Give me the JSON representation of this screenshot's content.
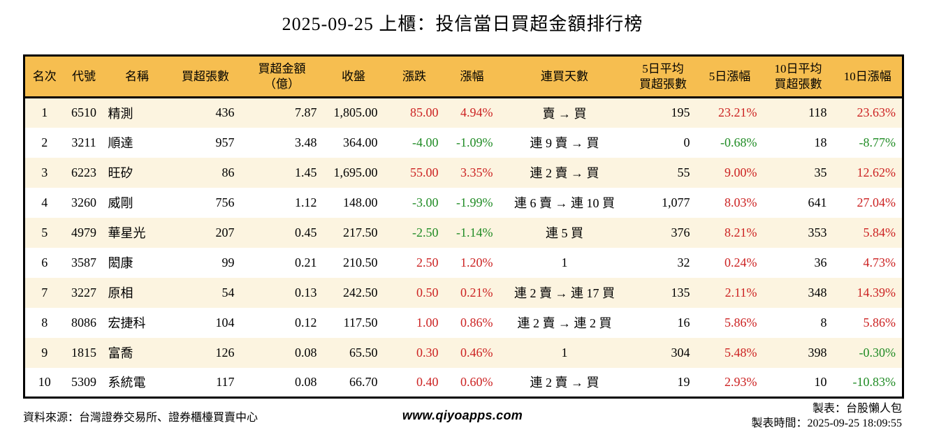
{
  "title": "2025-09-25 上櫃：投信當日買超金額排行榜",
  "colors": {
    "up": "#CC2222",
    "down": "#1F8B24",
    "header_bg": "#F6BE50",
    "stripe_bg": "#FCF4E0",
    "border": "#000000"
  },
  "chart_data": {
    "type": "table",
    "title": "2025-09-25 上櫃：投信當日買超金額排行榜",
    "columns": [
      {
        "key": "rank",
        "label": "名次"
      },
      {
        "key": "code",
        "label": "代號"
      },
      {
        "key": "name",
        "label": "名稱"
      },
      {
        "key": "shares",
        "label": "買超張數"
      },
      {
        "key": "amount",
        "label": "買超金額\n（億）"
      },
      {
        "key": "close",
        "label": "收盤"
      },
      {
        "key": "change",
        "label": "漲跌"
      },
      {
        "key": "change_pct",
        "label": "漲幅"
      },
      {
        "key": "streak",
        "label": "連買天數"
      },
      {
        "key": "avg5",
        "label": "5日平均\n買超張數"
      },
      {
        "key": "pct5",
        "label": "5日漲幅"
      },
      {
        "key": "avg10",
        "label": "10日平均\n買超張數"
      },
      {
        "key": "pct10",
        "label": "10日漲幅"
      }
    ],
    "colored_columns": [
      "change",
      "change_pct",
      "pct5",
      "pct10"
    ],
    "rows": [
      {
        "rank": "1",
        "code": "6510",
        "name": "精測",
        "shares": "436",
        "amount": "7.87",
        "close": "1,805.00",
        "change": "85.00",
        "change_pct": "4.94%",
        "streak": "賣 → 買",
        "avg5": "195",
        "pct5": "23.21%",
        "avg10": "118",
        "pct10": "23.63%"
      },
      {
        "rank": "2",
        "code": "3211",
        "name": "順達",
        "shares": "957",
        "amount": "3.48",
        "close": "364.00",
        "change": "-4.00",
        "change_pct": "-1.09%",
        "streak": "連 9 賣 → 買",
        "avg5": "0",
        "pct5": "-0.68%",
        "avg10": "18",
        "pct10": "-8.77%"
      },
      {
        "rank": "3",
        "code": "6223",
        "name": "旺矽",
        "shares": "86",
        "amount": "1.45",
        "close": "1,695.00",
        "change": "55.00",
        "change_pct": "3.35%",
        "streak": "連 2 賣 → 買",
        "avg5": "55",
        "pct5": "9.00%",
        "avg10": "35",
        "pct10": "12.62%"
      },
      {
        "rank": "4",
        "code": "3260",
        "name": "威剛",
        "shares": "756",
        "amount": "1.12",
        "close": "148.00",
        "change": "-3.00",
        "change_pct": "-1.99%",
        "streak": "連 6 賣 → 連 10 買",
        "avg5": "1,077",
        "pct5": "8.03%",
        "avg10": "641",
        "pct10": "27.04%"
      },
      {
        "rank": "5",
        "code": "4979",
        "name": "華星光",
        "shares": "207",
        "amount": "0.45",
        "close": "217.50",
        "change": "-2.50",
        "change_pct": "-1.14%",
        "streak": "連 5 買",
        "avg5": "376",
        "pct5": "8.21%",
        "avg10": "353",
        "pct10": "5.84%"
      },
      {
        "rank": "6",
        "code": "3587",
        "name": "閎康",
        "shares": "99",
        "amount": "0.21",
        "close": "210.50",
        "change": "2.50",
        "change_pct": "1.20%",
        "streak": "1",
        "avg5": "32",
        "pct5": "0.24%",
        "avg10": "36",
        "pct10": "4.73%"
      },
      {
        "rank": "7",
        "code": "3227",
        "name": "原相",
        "shares": "54",
        "amount": "0.13",
        "close": "242.50",
        "change": "0.50",
        "change_pct": "0.21%",
        "streak": "連 2 賣 → 連 17 買",
        "avg5": "135",
        "pct5": "2.11%",
        "avg10": "348",
        "pct10": "14.39%"
      },
      {
        "rank": "8",
        "code": "8086",
        "name": "宏捷科",
        "shares": "104",
        "amount": "0.12",
        "close": "117.50",
        "change": "1.00",
        "change_pct": "0.86%",
        "streak": "連 2 賣 → 連 2 買",
        "avg5": "16",
        "pct5": "5.86%",
        "avg10": "8",
        "pct10": "5.86%"
      },
      {
        "rank": "9",
        "code": "1815",
        "name": "富喬",
        "shares": "126",
        "amount": "0.08",
        "close": "65.50",
        "change": "0.30",
        "change_pct": "0.46%",
        "streak": "1",
        "avg5": "304",
        "pct5": "5.48%",
        "avg10": "398",
        "pct10": "-0.30%"
      },
      {
        "rank": "10",
        "code": "5309",
        "name": "系統電",
        "shares": "117",
        "amount": "0.08",
        "close": "66.70",
        "change": "0.40",
        "change_pct": "0.60%",
        "streak": "連 2 賣 → 買",
        "avg5": "19",
        "pct5": "2.93%",
        "avg10": "10",
        "pct10": "-10.83%"
      }
    ]
  },
  "footer": {
    "source": "資料來源：台灣證券交易所、證券櫃檯買賣中心",
    "website": "www.qiyoapps.com",
    "maker": "製表：台股懶人包",
    "made_time": "製表時間：2025-09-25 18:09:55"
  }
}
